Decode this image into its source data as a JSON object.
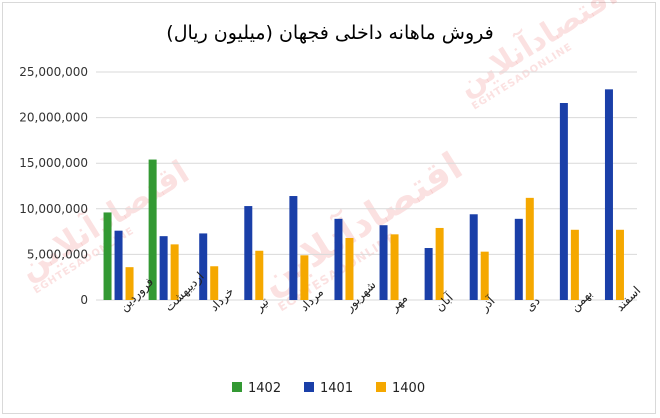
{
  "chart_data": {
    "type": "bar",
    "title": "فروش ماهانه داخلی فجهان (میلیون ریال)",
    "categories": [
      "فروردین",
      "اردیبهشت",
      "خرداد",
      "تیر",
      "مرداد",
      "شهریور",
      "مهر",
      "آبان",
      "آذر",
      "دی",
      "بهمن",
      "اسفند"
    ],
    "series": [
      {
        "name": "1402",
        "color": "#339933",
        "values": [
          9600000,
          15400000,
          null,
          null,
          null,
          null,
          null,
          null,
          null,
          null,
          null,
          null
        ]
      },
      {
        "name": "1401",
        "color": "#1a3fa8",
        "values": [
          7600000,
          7000000,
          7300000,
          10300000,
          11400000,
          8900000,
          8200000,
          5700000,
          9400000,
          8900000,
          21600000,
          23100000
        ]
      },
      {
        "name": "1400",
        "color": "#f5a800",
        "values": [
          3600000,
          6100000,
          3700000,
          5400000,
          4900000,
          6800000,
          7200000,
          7900000,
          5300000,
          11200000,
          7700000,
          7700000
        ]
      }
    ],
    "ylim": [
      0,
      25000000
    ],
    "yticks": [
      0,
      5000000,
      10000000,
      15000000,
      20000000,
      25000000
    ],
    "ytick_labels": [
      "0",
      "5,000,000",
      "10,000,000",
      "15,000,000",
      "20,000,000",
      "25,000,000"
    ],
    "grid": true,
    "legend_position": "bottom",
    "legend_order": [
      "1402",
      "1401",
      "1400"
    ]
  },
  "watermark": {
    "text": "اقتصادآنلاین",
    "subtext": "EGHTESADONLINE"
  }
}
